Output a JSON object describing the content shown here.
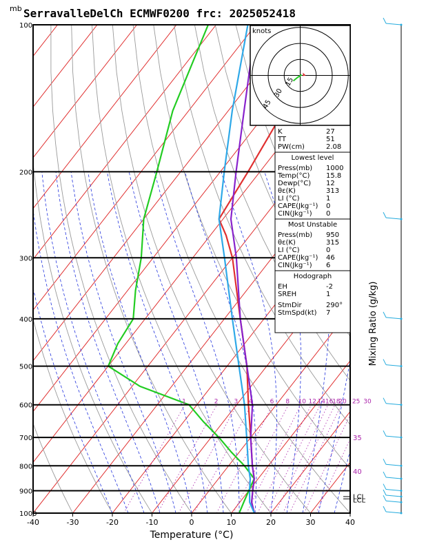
{
  "title": "SerravalleDelCh ECMWF0200  frc: 2025052418",
  "unit_top": "mb",
  "chart_data": {
    "type": "line",
    "xlabel": "Temperature (°C)",
    "ylabel": "Mixing Ratio (g/kg)",
    "x_ticks": [
      -40,
      -30,
      -20,
      -10,
      0,
      10,
      20,
      30,
      40
    ],
    "y_ticks": [
      100,
      200,
      300,
      400,
      500,
      600,
      700,
      800,
      900,
      1000
    ],
    "xlim": [
      -40,
      40
    ],
    "ylim": [
      1000,
      100
    ],
    "log_pressure": true,
    "skew": true,
    "mixing_ratio_labels": [
      "1",
      "2",
      "3",
      "4",
      "6",
      "8",
      "10",
      "12",
      "14",
      "16",
      "18",
      "20",
      "25",
      "30"
    ],
    "temp_labels_right": [
      "35",
      "40"
    ],
    "lcl_labels": [
      "LCL",
      "LCL"
    ],
    "series": [
      {
        "color": "#e03030",
        "pressure": [
          1000,
          950,
          900,
          850,
          800,
          700,
          600,
          500,
          400,
          300,
          270,
          250,
          200,
          150,
          100
        ],
        "values": [
          15.8,
          13,
          11,
          9,
          6,
          0,
          -7,
          -15,
          -26,
          -40,
          -46,
          -51,
          -53,
          -56,
          -57
        ]
      },
      {
        "color": "#22cc22",
        "pressure": [
          1000,
          950,
          900,
          850,
          800,
          750,
          700,
          650,
          600,
          550,
          500,
          450,
          400,
          350,
          300,
          250,
          200,
          150,
          100
        ],
        "values": [
          12,
          11,
          10,
          9,
          4,
          -2,
          -8,
          -15,
          -22,
          -38,
          -50,
          -52,
          -53,
          -58,
          -63,
          -70,
          -76,
          -84,
          -92
        ]
      },
      {
        "color": "#8822cc",
        "pressure": [
          1000,
          950,
          900,
          850,
          800,
          700,
          600,
          500,
          400,
          300,
          250,
          200,
          150,
          100
        ],
        "values": [
          15.8,
          13,
          11,
          9,
          6,
          0,
          -6,
          -15,
          -26,
          -39,
          -48,
          -56,
          -66,
          -80
        ]
      },
      {
        "color": "#2ea8e8",
        "pressure": [
          1000,
          950,
          900,
          850,
          800,
          700,
          600,
          500,
          400,
          300,
          250,
          200,
          150,
          100
        ],
        "values": [
          15.8,
          12.5,
          10.2,
          8,
          5,
          -1,
          -8,
          -17,
          -28,
          -42,
          -51,
          -59,
          -69,
          -82
        ]
      }
    ]
  },
  "indices": {
    "rows": [
      {
        "k": "K",
        "v": "27"
      },
      {
        "k": "TT",
        "v": "51"
      },
      {
        "k": "PW(cm)",
        "v": "2.08"
      }
    ]
  },
  "lowest_level": {
    "header": "Lowest level",
    "rows": [
      {
        "k": "Press(mb)",
        "v": "1000"
      },
      {
        "k": "Temp(°C)",
        "v": "15.8"
      },
      {
        "k": "Dewp(°C)",
        "v": "12"
      },
      {
        "k": "θε(K)",
        "v": "313"
      },
      {
        "k": "LI (°C)",
        "v": "1"
      },
      {
        "k": "CAPE(Jkg⁻¹)",
        "v": "0"
      },
      {
        "k": "CIN(Jkg⁻¹)",
        "v": "0"
      }
    ]
  },
  "most_unstable": {
    "header": "Most Unstable",
    "rows": [
      {
        "k": "Press(mb)",
        "v": "950"
      },
      {
        "k": "θε(K)",
        "v": "315"
      },
      {
        "k": "LI (°C)",
        "v": "0"
      },
      {
        "k": "CAPE(Jkg⁻¹)",
        "v": "46"
      },
      {
        "k": "CIN(Jkg⁻¹)",
        "v": "6"
      }
    ]
  },
  "hodograph": {
    "header": "Hodograph",
    "rows": [
      {
        "k": "EH",
        "v": "-2"
      },
      {
        "k": "SREH",
        "v": "1"
      },
      {
        "k": "StmDir",
        "v": "290°"
      },
      {
        "k": "StmSpd(kt)",
        "v": "7"
      }
    ],
    "units": "knots",
    "ring_labels": [
      "15",
      "30",
      "45"
    ]
  },
  "colors": {
    "isotherm": "#e03030",
    "dry_adiabat": "#999999",
    "moist_adiabat": "#2233dd",
    "mixing_ratio": "#aa22aa",
    "wind": "#22aadd"
  }
}
